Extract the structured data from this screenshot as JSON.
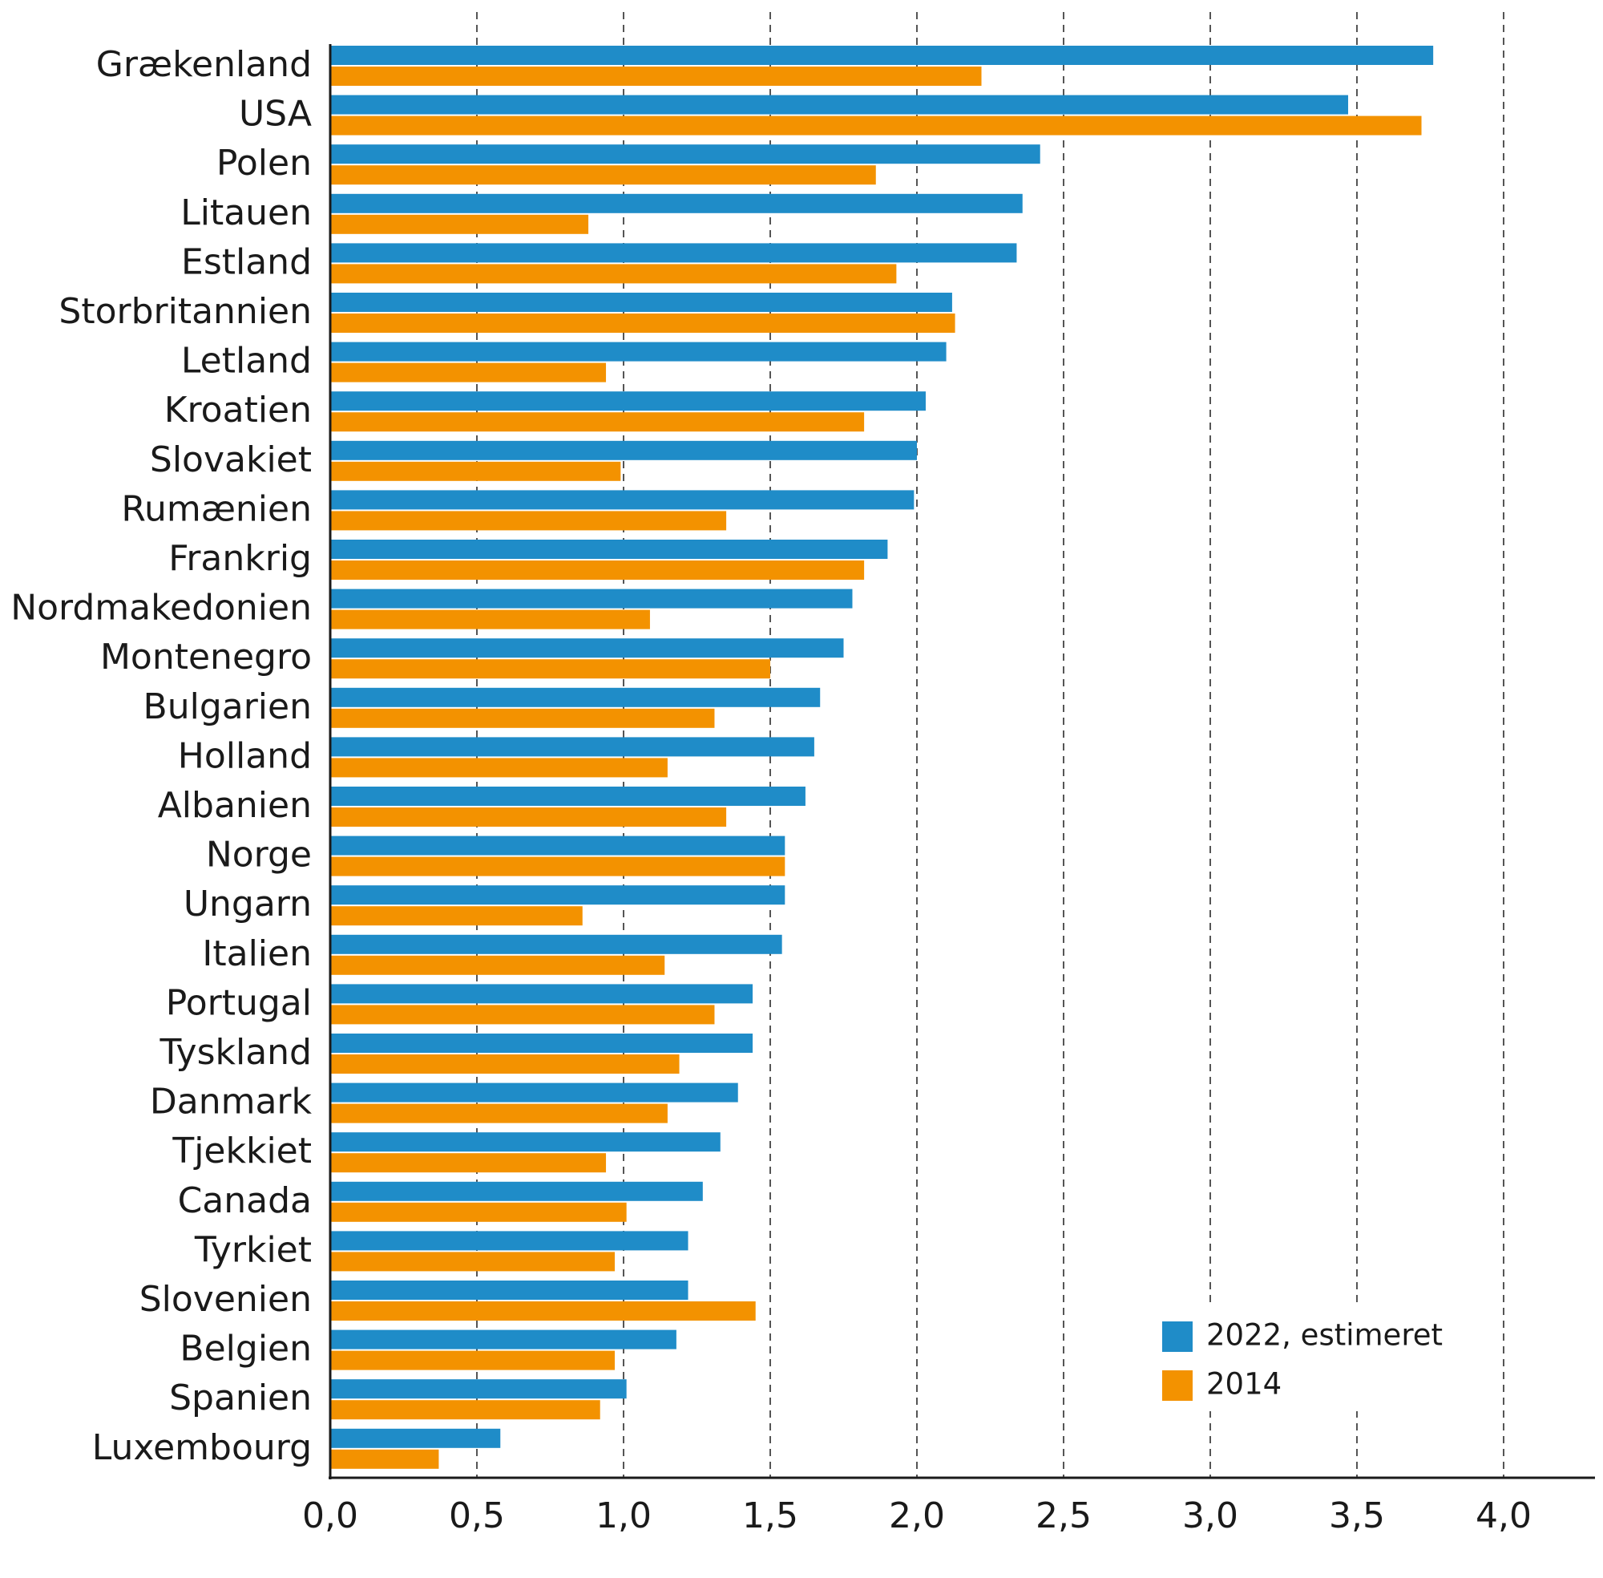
{
  "chart_data": {
    "type": "bar",
    "orientation": "horizontal",
    "categories": [
      "Grækenland",
      "USA",
      "Polen",
      "Litauen",
      "Estland",
      "Storbritannien",
      "Letland",
      "Kroatien",
      "Slovakiet",
      "Rumænien",
      "Frankrig",
      "Nordmakedonien",
      "Montenegro",
      "Bulgarien",
      "Holland",
      "Albanien",
      "Norge",
      "Ungarn",
      "Italien",
      "Portugal",
      "Tyskland",
      "Danmark",
      "Tjekkiet",
      "Canada",
      "Tyrkiet",
      "Slovenien",
      "Belgien",
      "Spanien",
      "Luxembourg"
    ],
    "series": [
      {
        "name": "2022, estimeret",
        "color": "#1f8cc8",
        "values": [
          3.76,
          3.47,
          2.42,
          2.36,
          2.34,
          2.12,
          2.1,
          2.03,
          2.0,
          1.99,
          1.9,
          1.78,
          1.75,
          1.67,
          1.65,
          1.62,
          1.55,
          1.55,
          1.54,
          1.44,
          1.44,
          1.39,
          1.33,
          1.27,
          1.22,
          1.22,
          1.18,
          1.01,
          0.58
        ]
      },
      {
        "name": "2014",
        "color": "#f39200",
        "values": [
          2.22,
          3.72,
          1.86,
          0.88,
          1.93,
          2.13,
          0.94,
          1.82,
          0.99,
          1.35,
          1.82,
          1.09,
          1.5,
          1.31,
          1.15,
          1.35,
          1.55,
          0.86,
          1.14,
          1.31,
          1.19,
          1.15,
          0.94,
          1.01,
          0.97,
          1.45,
          0.97,
          0.92,
          0.37
        ]
      }
    ],
    "xlim": [
      0,
      4.3
    ],
    "xticks": [
      0,
      0.5,
      1,
      1.5,
      2,
      2.5,
      3,
      3.5,
      4
    ],
    "xtick_labels": [
      "0,0",
      "0,5",
      "1,0",
      "1,5",
      "2,0",
      "2,5",
      "3,0",
      "3,5",
      "4,0"
    ],
    "grid": "vertical dashed",
    "legend": "bottom-right",
    "title": "",
    "xlabel": "",
    "ylabel": ""
  }
}
